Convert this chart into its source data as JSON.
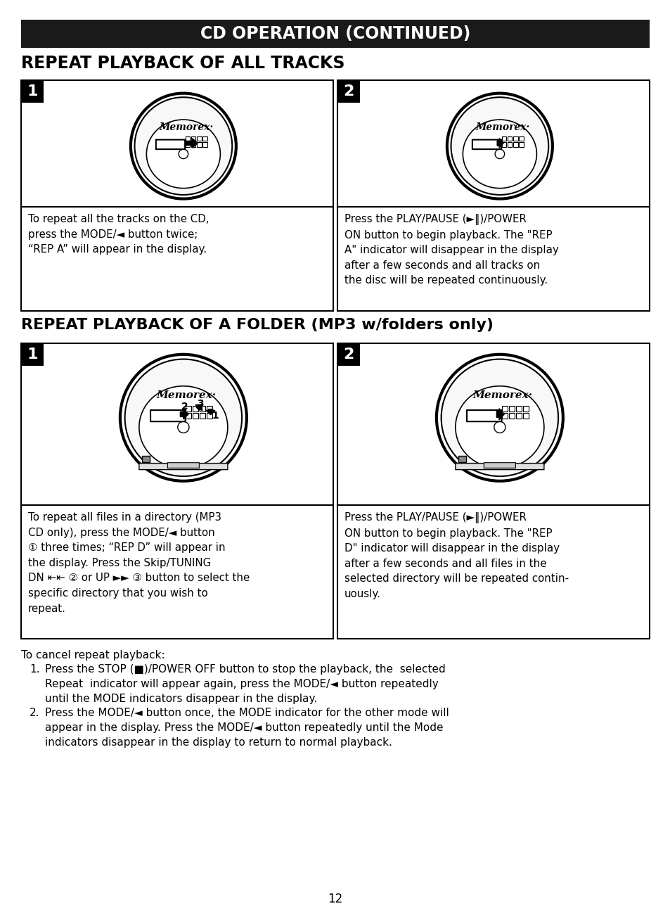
{
  "title": "CD OPERATION (CONTINUED)",
  "section1_title": "REPEAT PLAYBACK OF ALL TRACKS",
  "section2_title": "REPEAT PLAYBACK OF A FOLDER (MP3 w/folders only)",
  "box1_text1": "To repeat all the tracks on the CD,\npress the MODE/◄ button twice;\n“REP A” will appear in the display.",
  "box1_text2": "Press the PLAY/PAUSE (►‖)/POWER\nON button to begin playback. The \"REP\nA\" indicator will disappear in the display\nafter a few seconds and all tracks on\nthe disc will be repeated continuously.",
  "box2_text1": "To repeat all files in a directory (MP3\nCD only), press the MODE/◄ button\n① three times; “REP D” will appear in\nthe display. Press the Skip/TUNING\nDN ⇤⇤ ② or UP ►► ③ button to select the\nspecific directory that you wish to\nrepeat.",
  "box2_text2": "Press the PLAY/PAUSE (►‖)/POWER\nON button to begin playback. The \"REP\nD\" indicator will disappear in the display\nafter a few seconds and all files in the\nselected directory will be repeated contin-\nuously.",
  "cancel_title": "To cancel repeat playback:",
  "cancel_text1": "Press the STOP (■)/POWER OFF button to stop the playback, the  selected\nRepeat  indicator will appear again, press the MODE/◄ button repeatedly\nuntil the MODE indicators disappear in the display.",
  "cancel_text2": "Press the MODE/◄ button once, the MODE indicator for the other mode will\nappear in the display. Press the MODE/◄ button repeatedly until the Mode\nindicators disappear in the display to return to normal playback.",
  "page_num": "12",
  "bg_color": "#ffffff",
  "header_bg": "#1a1a1a",
  "header_text_color": "#ffffff",
  "border_color": "#000000",
  "text_color": "#000000"
}
